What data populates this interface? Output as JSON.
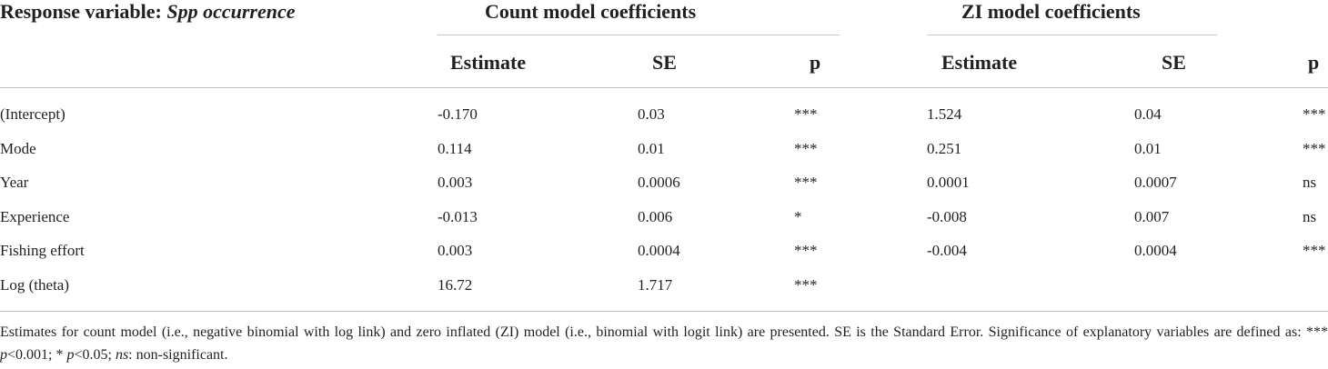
{
  "header": {
    "response_label": "Response variable:",
    "response_value": "Spp occurrence",
    "count_group": "Count model coefficients",
    "zi_group": "ZI model coefficients"
  },
  "columns": [
    "Estimate",
    "SE",
    "p",
    "Estimate",
    "SE",
    "p"
  ],
  "rows": [
    {
      "label": "(Intercept)",
      "c_est": "-0.170",
      "c_se": "0.03",
      "c_p": "***",
      "z_est": "1.524",
      "z_se": "0.04",
      "z_p": "***"
    },
    {
      "label": "Mode",
      "c_est": "0.114",
      "c_se": "0.01",
      "c_p": "***",
      "z_est": "0.251",
      "z_se": "0.01",
      "z_p": "***"
    },
    {
      "label": "Year",
      "c_est": "0.003",
      "c_se": "0.0006",
      "c_p": "***",
      "z_est": "0.0001",
      "z_se": "0.0007",
      "z_p": "ns"
    },
    {
      "label": "Experience",
      "c_est": "-0.013",
      "c_se": "0.006",
      "c_p": "*",
      "z_est": "-0.008",
      "z_se": "0.007",
      "z_p": "ns"
    },
    {
      "label": "Fishing effort",
      "c_est": "0.003",
      "c_se": "0.0004",
      "c_p": "***",
      "z_est": "-0.004",
      "z_se": "0.0004",
      "z_p": "***"
    },
    {
      "label": "Log (theta)",
      "c_est": "16.72",
      "c_se": "1.717",
      "c_p": "***",
      "z_est": "",
      "z_se": "",
      "z_p": ""
    }
  ],
  "footnote": {
    "part1": "Estimates for count model (i.e., negative binomial with log link) and zero inflated (ZI) model (i.e., binomial with logit link) are presented. SE is the Standard Error. Significance of explanatory variables are defined as: *** ",
    "p1": "p",
    "part2": "<0.001; * ",
    "p2": "p",
    "part3": "<0.05; ",
    "ns": "ns",
    "part4": ": non-significant."
  }
}
